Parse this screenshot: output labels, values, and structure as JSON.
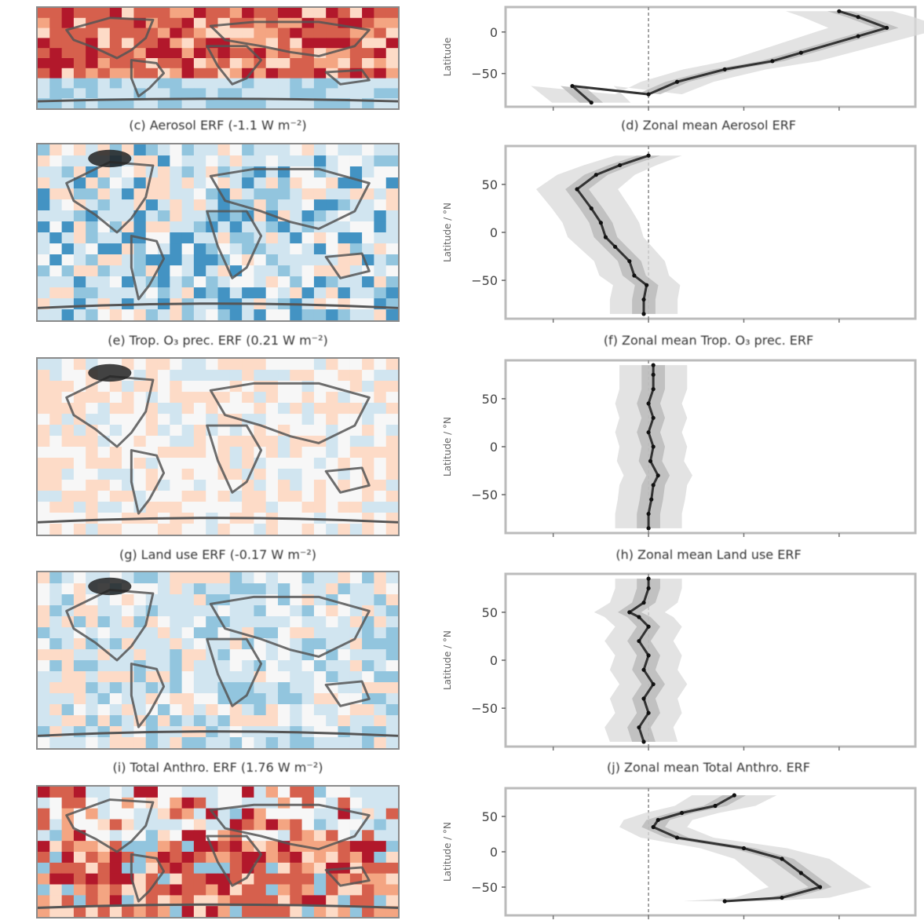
{
  "figure": {
    "panels": [
      {
        "map_caption": "(c) Aerosol ERF (-1.1 W m⁻²)",
        "zonal_caption": "(d) Zonal mean Aerosol ERF",
        "map_tone": "warm",
        "yticks": [
          "0",
          "−50"
        ],
        "ylabel": "Latitude",
        "show_ylabel_unit": false
      },
      {
        "map_caption": "(e) Trop. O₃ prec. ERF (0.21 W m⁻²)",
        "zonal_caption": "(f) Zonal mean Trop. O₃ prec. ERF",
        "map_tone": "cool",
        "yticks": [
          "50",
          "0",
          "−50"
        ],
        "ylabel": "Latitude",
        "unit_label": "°N",
        "show_ylabel_unit": true
      },
      {
        "map_caption": "(g) Land use ERF (-0.17 W m⁻²)",
        "zonal_caption": "(h) Zonal mean Land use ERF",
        "map_tone": "neutral",
        "yticks": [
          "50",
          "0",
          "−50"
        ],
        "ylabel": "Latitude",
        "unit_label": "°N",
        "show_ylabel_unit": true
      },
      {
        "map_caption": "(i) Total Anthro. ERF (1.76 W m⁻²)",
        "zonal_caption": "(j) Zonal mean Total Anthro. ERF",
        "map_tone": "neutral-cool",
        "yticks": [
          "50",
          "0",
          "−50"
        ],
        "ylabel": "Latitude",
        "unit_label": "°N",
        "show_ylabel_unit": true
      },
      {
        "map_caption": "",
        "zonal_caption": "",
        "map_tone": "warm-strong",
        "yticks": [
          "50",
          "0",
          "−50"
        ],
        "ylabel": "Latitude",
        "unit_label": "°N",
        "show_ylabel_unit": true
      }
    ]
  },
  "colors": {
    "red_dark": "#b2182b",
    "red": "#d6604d",
    "red_light": "#f4a582",
    "pink": "#fddbc7",
    "white": "#f7f7f7",
    "blue_pale": "#d1e5f0",
    "blue_light": "#92c5de",
    "blue": "#4393c3",
    "blue_dark": "#2166ac",
    "line": "#333333",
    "shade": "#d9d9d9",
    "shade_dark": "#b8b8b8",
    "coast": "#555555"
  },
  "chart_data": [
    {
      "type": "line",
      "title": "(d) Zonal mean Aerosol ERF",
      "ylabel": "Latitude",
      "ylim": [
        -90,
        30
      ],
      "yticks": [
        0,
        -50
      ],
      "series": [
        {
          "values": [
            [
              -0.6,
              -85
            ],
            [
              -0.8,
              -65
            ],
            [
              0.0,
              -75
            ],
            [
              0.3,
              -60
            ],
            [
              0.8,
              -45
            ],
            [
              1.3,
              -35
            ],
            [
              1.6,
              -25
            ],
            [
              2.2,
              -5
            ],
            [
              2.5,
              5
            ],
            [
              2.2,
              18
            ],
            [
              2.0,
              25
            ]
          ]
        }
      ]
    },
    {
      "type": "line",
      "title": "(f) Zonal mean Trop. O₃ prec. ERF",
      "ylabel": "Latitude",
      "ylim": [
        -90,
        90
      ],
      "yticks": [
        50,
        0,
        -50
      ],
      "series": [
        {
          "values": [
            [
              -0.05,
              -85
            ],
            [
              -0.05,
              -70
            ],
            [
              -0.02,
              -55
            ],
            [
              -0.15,
              -45
            ],
            [
              -0.2,
              -30
            ],
            [
              -0.35,
              -15
            ],
            [
              -0.45,
              -5
            ],
            [
              -0.5,
              10
            ],
            [
              -0.6,
              25
            ],
            [
              -0.75,
              45
            ],
            [
              -0.55,
              60
            ],
            [
              -0.3,
              70
            ],
            [
              0.0,
              80
            ]
          ]
        }
      ]
    },
    {
      "type": "line",
      "title": "(h) Zonal mean Land use ERF",
      "ylabel": "Latitude",
      "ylim": [
        -90,
        90
      ],
      "yticks": [
        50,
        0,
        -50
      ],
      "series": [
        {
          "values": [
            [
              0.0,
              -85
            ],
            [
              0.0,
              -70
            ],
            [
              0.03,
              -55
            ],
            [
              0.05,
              -40
            ],
            [
              0.1,
              -30
            ],
            [
              0.02,
              -15
            ],
            [
              0.05,
              0
            ],
            [
              0.0,
              15
            ],
            [
              0.05,
              30
            ],
            [
              0.0,
              45
            ],
            [
              0.05,
              60
            ],
            [
              0.05,
              75
            ],
            [
              0.05,
              85
            ]
          ]
        }
      ]
    },
    {
      "type": "line",
      "title": "(j) Zonal mean Total Anthro. ERF",
      "ylabel": "Latitude",
      "ylim": [
        -90,
        90
      ],
      "yticks": [
        50,
        0,
        -50
      ],
      "series": [
        {
          "values": [
            [
              -0.05,
              -85
            ],
            [
              -0.1,
              -70
            ],
            [
              0.0,
              -55
            ],
            [
              -0.05,
              -40
            ],
            [
              0.05,
              -25
            ],
            [
              -0.05,
              -10
            ],
            [
              0.0,
              5
            ],
            [
              -0.1,
              20
            ],
            [
              0.0,
              35
            ],
            [
              -0.1,
              45
            ],
            [
              -0.2,
              50
            ],
            [
              -0.05,
              60
            ],
            [
              0.0,
              75
            ],
            [
              0.0,
              85
            ]
          ]
        }
      ]
    },
    {
      "type": "line",
      "title": "",
      "ylabel": "Latitude",
      "ylim": [
        -90,
        90
      ],
      "yticks": [
        50,
        0,
        -50
      ],
      "series": [
        {
          "values": [
            [
              0.8,
              -70
            ],
            [
              1.4,
              -65
            ],
            [
              1.8,
              -50
            ],
            [
              1.6,
              -30
            ],
            [
              1.4,
              -10
            ],
            [
              1.0,
              5
            ],
            [
              0.3,
              20
            ],
            [
              0.05,
              35
            ],
            [
              0.1,
              45
            ],
            [
              0.35,
              55
            ],
            [
              0.7,
              65
            ],
            [
              0.9,
              80
            ]
          ]
        }
      ]
    }
  ]
}
